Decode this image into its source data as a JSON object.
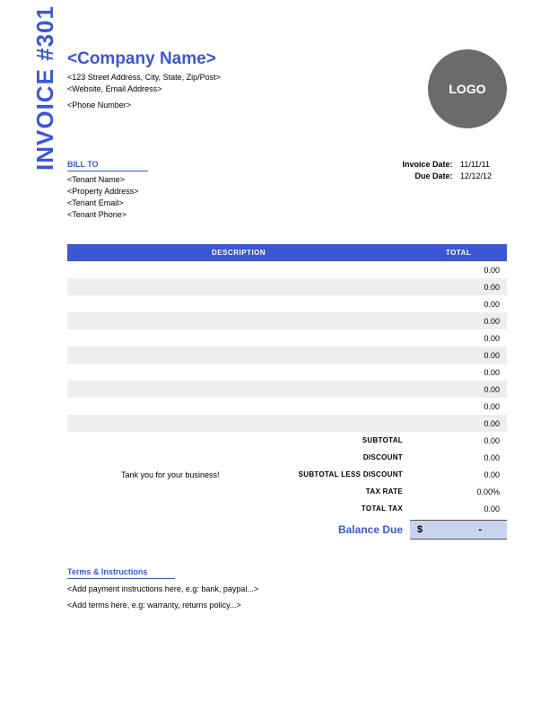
{
  "side_title": "INVOICE #301",
  "company": {
    "name": "<Company Name>",
    "address": "<123 Street Address, City, State, Zip/Post>",
    "web_email": "<Website, Email Address>",
    "phone": "<Phone Number>"
  },
  "logo_text": "LOGO",
  "billto": {
    "label": "BILL TO",
    "tenant_name": "<Tenant Name>",
    "property": "<Property Address>",
    "email": "<Tenant Email>",
    "phone": "<Tenant Phone>"
  },
  "meta": {
    "invoice_date_label": "Invoice Date:",
    "invoice_date": "11/11/11",
    "due_date_label": "Due Date:",
    "due_date": "12/12/12"
  },
  "table": {
    "header_description": "DESCRIPTION",
    "header_total": "TOTAL",
    "rows": [
      {
        "desc": "",
        "total": "0.00"
      },
      {
        "desc": "",
        "total": "0.00"
      },
      {
        "desc": "",
        "total": "0.00"
      },
      {
        "desc": "",
        "total": "0.00"
      },
      {
        "desc": "",
        "total": "0.00"
      },
      {
        "desc": "",
        "total": "0.00"
      },
      {
        "desc": "",
        "total": "0.00"
      },
      {
        "desc": "",
        "total": "0.00"
      },
      {
        "desc": "",
        "total": "0.00"
      },
      {
        "desc": "",
        "total": "0.00"
      }
    ]
  },
  "summary": {
    "subtotal_label": "SUBTOTAL",
    "subtotal": "0.00",
    "discount_label": "DISCOUNT",
    "discount": "0.00",
    "subtotal_less_label": "SUBTOTAL LESS DISCOUNT",
    "subtotal_less": "0.00",
    "tax_rate_label": "TAX RATE",
    "tax_rate": "0.00%",
    "total_tax_label": "TOTAL TAX",
    "total_tax": "0.00"
  },
  "thanks": "Tank you for your business!",
  "balance": {
    "label": "Balance Due",
    "currency": "$",
    "value": "-"
  },
  "terms": {
    "label": "Terms & Instructions",
    "line1": "<Add payment instructions here, e.g: bank, paypal...>",
    "line2": "<Add terms here, e.g: warranty, returns policy...>"
  },
  "colors": {
    "accent": "#3c57d1",
    "logo_bg": "#6b6b6b",
    "row_alt": "#eeeeee",
    "balance_bg": "#c9d3f0"
  }
}
